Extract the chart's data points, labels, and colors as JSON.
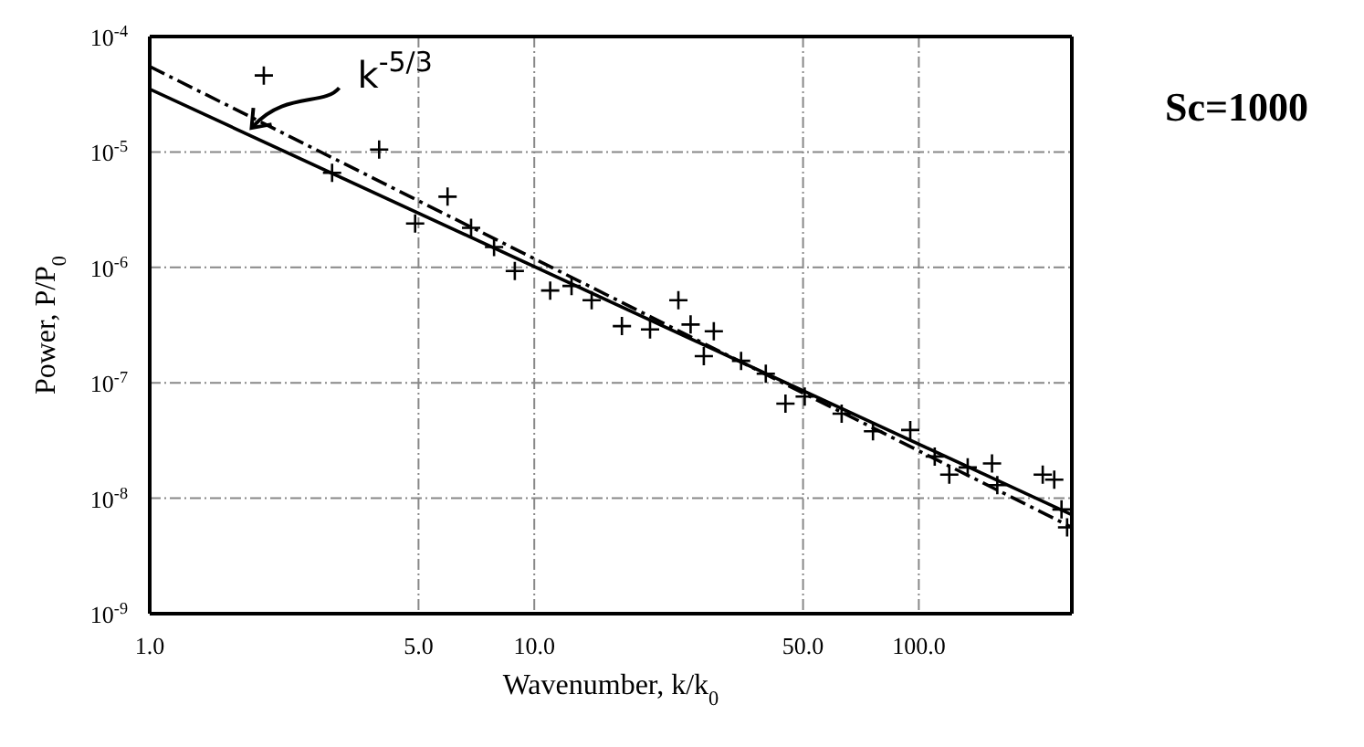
{
  "chart_data": {
    "type": "scatter",
    "xlabel": "Wavenumber, k/k$_{0}$",
    "ylabel": "Power, P/P$_{0}$",
    "log": "xy",
    "grid": true,
    "xlim": [
      1,
      250
    ],
    "ylim": [
      1e-09,
      0.0001
    ],
    "xticks": [
      {
        "value": 1,
        "label": "1.0"
      },
      {
        "value": 5,
        "label": "5.0"
      },
      {
        "value": 10,
        "label": "10.0"
      },
      {
        "value": 50,
        "label": "50.0"
      },
      {
        "value": 100,
        "label": "100.0"
      }
    ],
    "yticks": [
      {
        "value": 1e-09,
        "label": "10$^{-9}$"
      },
      {
        "value": 1e-08,
        "label": "10$^{-8}$"
      },
      {
        "value": 1e-07,
        "label": "10$^{-7}$"
      },
      {
        "value": 1e-06,
        "label": "10$^{-6}$"
      },
      {
        "value": 1e-05,
        "label": "10$^{-5}$"
      },
      {
        "value": 0.0001,
        "label": "10$^{-4}$"
      }
    ],
    "series": [
      {
        "marker": "cross",
        "color": "#000000",
        "x": [
          1.98,
          2.98,
          3.95,
          4.9,
          5.95,
          6.85,
          7.86,
          8.9,
          11,
          12.5,
          14.1,
          16.9,
          20,
          23.7,
          25.5,
          27.6,
          29.3,
          34.5,
          40,
          45,
          50.5,
          63,
          76,
          95,
          110,
          120,
          134,
          155,
          160,
          210,
          225,
          235,
          243
        ],
        "values": [
          4.6e-05,
          6.6e-06,
          1.05e-05,
          2.4e-06,
          4.1e-06,
          2.2e-06,
          1.5e-06,
          9.3e-07,
          6.3e-07,
          6.9e-07,
          5.2e-07,
          3.1e-07,
          2.9e-07,
          5.2e-07,
          3.2e-07,
          1.7e-07,
          2.8e-07,
          1.55e-07,
          1.2e-07,
          6.6e-08,
          7.6e-08,
          5.4e-08,
          3.8e-08,
          3.9e-08,
          2.3e-08,
          1.6e-08,
          1.85e-08,
          2e-08,
          1.3e-08,
          1.6e-08,
          1.45e-08,
          8e-09,
          5.6e-09
        ]
      },
      {
        "type": "line",
        "color": "#000000",
        "line_style": "solid",
        "x": [
          1,
          250
        ],
        "values": [
          3.5e-05,
          7.2e-09
        ]
      },
      {
        "type": "line",
        "color": "#000000",
        "line_style": "dashed",
        "x": [
          1,
          250
        ],
        "values": [
          5.5e-05,
          5.6e-09
        ]
      }
    ],
    "annotations": [
      {
        "text": "k$^{-5/3}$",
        "x": 1.8,
        "y": 1.5e-05
      },
      "Sc=1000"
    ]
  }
}
